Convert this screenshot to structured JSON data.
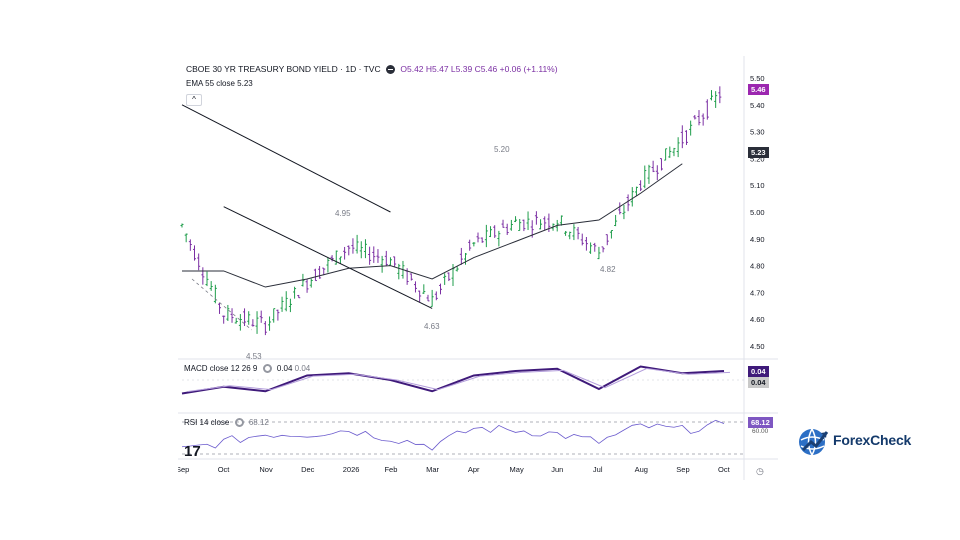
{
  "header": {
    "symbol_line": "CBOE 30 YR TREASURY BOND YIELD · 1D · TVC",
    "ohlc": "O5.42  H5.47  L5.39  C5.46  +0.06 (+1.11%)",
    "ema_label": "EMA 55 close",
    "ema_value": "5.23",
    "collapse_label": "^"
  },
  "macd_pane": {
    "label": "MACD close 12 26 9",
    "value1": "0.04",
    "value2": "0.04"
  },
  "rsi_pane": {
    "label": "RSI 14 close",
    "value": "68.12"
  },
  "price_tags": {
    "last": "5.46",
    "ema": "5.23",
    "macd_a": "0.04",
    "macd_b": "0.04",
    "rsi": "68.12",
    "rsi_under": "60.00"
  },
  "annotations": {
    "a1": "4.95",
    "a2": "5.20",
    "a3": "4.63",
    "a4": "4.82",
    "a5": "4.53"
  },
  "logo": {
    "brand": "ForexCheck"
  },
  "colors": {
    "up": "#1f9d4b",
    "down": "#7b2fa3",
    "ema": "#2a2e39",
    "macd": "#3f1a7a",
    "rsi": "#6a5acd"
  },
  "chart_data": {
    "type": "line",
    "title": "CBOE 30 YR TREASURY BOND YIELD · 1D · TVC",
    "ylim": [
      4.5,
      5.5
    ],
    "y_ticks": [
      "5.50",
      "5.40",
      "5.30",
      "5.20",
      "5.10",
      "5.00",
      "4.90",
      "4.80",
      "4.70",
      "4.60",
      "4.50"
    ],
    "x_ticks": [
      "Sep",
      "Oct",
      "Nov",
      "Dec",
      "2026",
      "Feb",
      "Mar",
      "Apr",
      "May",
      "Jun",
      "Jul",
      "Aug",
      "Sep",
      "Oct"
    ],
    "series": [
      {
        "name": "EMA 55 close",
        "x": [
          "Sep",
          "Oct",
          "Nov",
          "Dec",
          "2026",
          "Feb",
          "Mar",
          "Apr",
          "May",
          "Jun",
          "Jul",
          "Aug",
          "Sep"
        ],
        "values": [
          4.78,
          4.78,
          4.72,
          4.75,
          4.79,
          4.8,
          4.75,
          4.83,
          4.89,
          4.95,
          4.97,
          5.07,
          5.18
        ]
      },
      {
        "name": "close",
        "x": [
          "Sep",
          "Oct",
          "Nov",
          "Dec",
          "2026",
          "Feb",
          "Mar",
          "Apr",
          "May",
          "Jun",
          "Jul",
          "Aug",
          "Sep",
          "Oct"
        ],
        "values": [
          4.95,
          4.62,
          4.58,
          4.74,
          4.87,
          4.82,
          4.67,
          4.88,
          4.96,
          4.97,
          4.85,
          5.11,
          5.27,
          5.46
        ]
      }
    ],
    "channel": {
      "upper": {
        "from": [
          "Feb",
          5.0
        ],
        "to": [
          "Sep",
          5.4
        ]
      },
      "lower": {
        "from": [
          "Mar",
          4.64
        ],
        "to": [
          "Oct",
          5.02
        ]
      }
    },
    "macd_values": [
      -0.06,
      -0.03,
      -0.05,
      0.02,
      0.03,
      0.0,
      -0.05,
      0.02,
      0.04,
      0.05,
      -0.04,
      0.06,
      0.03,
      0.04
    ],
    "rsi_values": [
      35,
      45,
      55,
      55,
      60,
      50,
      40,
      62,
      60,
      55,
      45,
      65,
      60,
      68
    ]
  }
}
